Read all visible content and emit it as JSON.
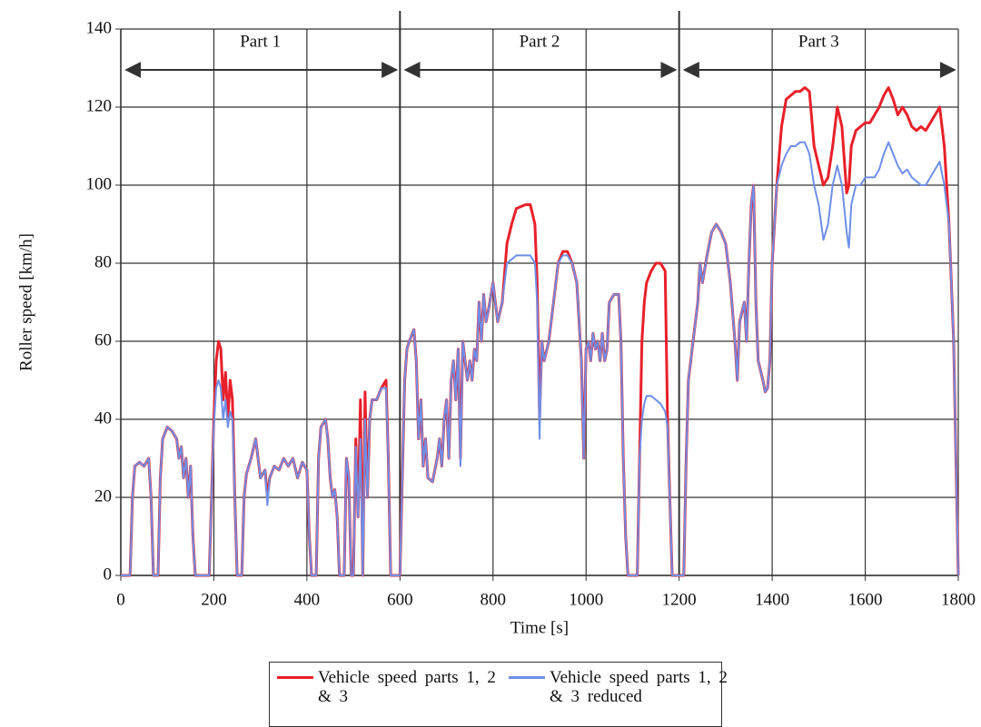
{
  "chart_data": {
    "type": "line",
    "xlabel": "Time [s]",
    "ylabel": "Roller speed [km/h]",
    "xlim": [
      0,
      1800
    ],
    "xticks": [
      0,
      200,
      400,
      600,
      800,
      1000,
      1200,
      1400,
      1600,
      1800
    ],
    "ylim": [
      0,
      140
    ],
    "yticks": [
      0,
      20,
      40,
      60,
      80,
      100,
      120,
      140
    ],
    "grid": true,
    "annotations": [
      {
        "label": "Part 1",
        "from": 0,
        "to": 600
      },
      {
        "label": "Part 2",
        "from": 600,
        "to": 1200
      },
      {
        "label": "Part 3",
        "from": 1200,
        "to": 1800
      }
    ],
    "x": [
      0,
      10,
      20,
      25,
      30,
      40,
      50,
      60,
      65,
      70,
      80,
      85,
      90,
      100,
      110,
      120,
      125,
      130,
      135,
      140,
      145,
      150,
      155,
      160,
      190,
      195,
      200,
      205,
      210,
      215,
      220,
      225,
      230,
      235,
      240,
      245,
      250,
      260,
      265,
      270,
      280,
      290,
      295,
      300,
      310,
      315,
      320,
      330,
      340,
      350,
      360,
      370,
      380,
      390,
      400,
      405,
      410,
      420,
      425,
      430,
      440,
      445,
      450,
      455,
      460,
      465,
      470,
      480,
      485,
      490,
      495,
      500,
      505,
      510,
      515,
      520,
      525,
      530,
      535,
      540,
      550,
      560,
      570,
      575,
      580,
      600,
      610,
      615,
      620,
      630,
      635,
      640,
      645,
      650,
      655,
      660,
      670,
      680,
      685,
      690,
      695,
      700,
      705,
      710,
      715,
      720,
      725,
      730,
      735,
      740,
      745,
      750,
      755,
      760,
      765,
      770,
      775,
      780,
      785,
      790,
      800,
      810,
      820,
      830,
      840,
      850,
      870,
      880,
      890,
      895,
      900,
      905,
      910,
      920,
      930,
      940,
      950,
      960,
      970,
      980,
      990,
      995,
      1000,
      1005,
      1010,
      1015,
      1020,
      1025,
      1030,
      1035,
      1040,
      1045,
      1050,
      1060,
      1070,
      1075,
      1080,
      1085,
      1090,
      1110,
      1115,
      1120,
      1125,
      1130,
      1140,
      1150,
      1160,
      1170,
      1175,
      1180,
      1185,
      1200,
      1210,
      1215,
      1220,
      1225,
      1230,
      1240,
      1245,
      1250,
      1260,
      1270,
      1280,
      1290,
      1300,
      1310,
      1320,
      1325,
      1330,
      1340,
      1345,
      1350,
      1355,
      1360,
      1365,
      1370,
      1380,
      1385,
      1390,
      1395,
      1400,
      1410,
      1420,
      1430,
      1440,
      1450,
      1460,
      1470,
      1480,
      1490,
      1500,
      1510,
      1520,
      1530,
      1540,
      1550,
      1560,
      1565,
      1570,
      1580,
      1590,
      1600,
      1610,
      1620,
      1630,
      1640,
      1650,
      1660,
      1670,
      1680,
      1690,
      1700,
      1710,
      1720,
      1730,
      1740,
      1750,
      1760,
      1770,
      1780,
      1790,
      1795,
      1800
    ],
    "series": [
      {
        "name": "Vehicle speed parts 1, 2 & 3",
        "color": "#e8202a",
        "values": [
          0,
          0,
          0,
          20,
          28,
          29,
          28,
          30,
          20,
          0,
          0,
          25,
          35,
          38,
          37,
          35,
          30,
          33,
          25,
          30,
          20,
          28,
          10,
          0,
          0,
          20,
          40,
          55,
          60,
          58,
          45,
          52,
          40,
          50,
          45,
          20,
          0,
          0,
          20,
          26,
          30,
          35,
          30,
          25,
          27,
          20,
          25,
          28,
          27,
          30,
          28,
          30,
          25,
          29,
          27,
          10,
          0,
          0,
          30,
          38,
          40,
          35,
          25,
          20,
          22,
          15,
          0,
          0,
          30,
          25,
          0,
          0,
          35,
          15,
          45,
          0,
          47,
          20,
          40,
          45,
          45,
          48,
          50,
          30,
          0,
          0,
          50,
          58,
          60,
          63,
          55,
          35,
          45,
          28,
          35,
          25,
          24,
          30,
          35,
          28,
          40,
          45,
          30,
          50,
          55,
          45,
          58,
          30,
          60,
          55,
          50,
          55,
          50,
          58,
          55,
          70,
          60,
          72,
          65,
          68,
          75,
          65,
          70,
          85,
          90,
          94,
          95,
          95,
          90,
          75,
          40,
          60,
          55,
          60,
          70,
          80,
          83,
          83,
          80,
          75,
          55,
          30,
          58,
          60,
          55,
          62,
          58,
          60,
          55,
          62,
          55,
          58,
          70,
          72,
          72,
          60,
          30,
          10,
          0,
          0,
          30,
          60,
          70,
          75,
          78,
          80,
          80,
          78,
          40,
          20,
          0,
          0,
          0,
          30,
          50,
          55,
          60,
          70,
          80,
          75,
          82,
          88,
          90,
          88,
          85,
          75,
          60,
          50,
          65,
          70,
          60,
          80,
          95,
          100,
          70,
          55,
          50,
          47,
          48,
          55,
          80,
          100,
          115,
          122,
          123,
          124,
          124,
          125,
          124,
          110,
          105,
          100,
          102,
          110,
          120,
          115,
          98,
          100,
          110,
          114,
          115,
          116,
          116,
          118,
          120,
          123,
          125,
          122,
          118,
          120,
          118,
          115,
          114,
          115,
          114,
          116,
          118,
          120,
          110,
          90,
          60,
          30,
          0
        ]
      },
      {
        "name": "Vehicle speed parts 1, 2 & 3 reduced",
        "color": "#6f8fe8",
        "values": [
          0,
          0,
          0,
          20,
          28,
          29,
          28,
          30,
          20,
          0,
          0,
          25,
          35,
          38,
          37,
          35,
          30,
          33,
          25,
          30,
          20,
          28,
          10,
          0,
          0,
          20,
          38,
          48,
          50,
          48,
          40,
          45,
          38,
          42,
          40,
          20,
          0,
          0,
          20,
          26,
          30,
          35,
          30,
          25,
          27,
          18,
          25,
          28,
          27,
          30,
          28,
          30,
          25,
          29,
          27,
          10,
          0,
          0,
          30,
          38,
          40,
          35,
          25,
          20,
          22,
          15,
          0,
          0,
          30,
          25,
          0,
          0,
          33,
          15,
          35,
          0,
          40,
          20,
          40,
          45,
          45,
          48,
          48,
          30,
          0,
          0,
          50,
          58,
          60,
          63,
          55,
          35,
          45,
          28,
          35,
          25,
          24,
          30,
          35,
          28,
          40,
          45,
          30,
          50,
          55,
          45,
          58,
          28,
          60,
          55,
          50,
          55,
          50,
          58,
          55,
          70,
          60,
          72,
          65,
          68,
          75,
          65,
          70,
          80,
          81,
          82,
          82,
          82,
          80,
          70,
          35,
          60,
          55,
          60,
          70,
          80,
          82,
          82,
          80,
          75,
          55,
          30,
          58,
          60,
          55,
          62,
          58,
          60,
          55,
          62,
          55,
          58,
          70,
          72,
          72,
          60,
          30,
          10,
          0,
          0,
          30,
          40,
          44,
          46,
          46,
          45,
          44,
          42,
          38,
          20,
          0,
          0,
          0,
          30,
          50,
          55,
          60,
          70,
          80,
          75,
          82,
          88,
          90,
          88,
          85,
          75,
          60,
          50,
          65,
          70,
          60,
          80,
          95,
          100,
          70,
          55,
          50,
          47,
          48,
          55,
          80,
          100,
          105,
          108,
          110,
          110,
          111,
          111,
          108,
          100,
          95,
          86,
          90,
          100,
          105,
          100,
          88,
          84,
          95,
          100,
          100,
          102,
          102,
          102,
          104,
          108,
          111,
          108,
          105,
          103,
          104,
          102,
          101,
          100,
          100,
          102,
          104,
          106,
          100,
          90,
          60,
          30,
          0
        ]
      }
    ]
  }
}
